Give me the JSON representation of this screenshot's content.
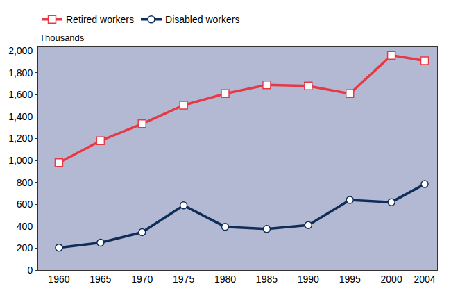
{
  "chart_data": {
    "type": "line",
    "ylabel": "Thousands",
    "x": [
      1960,
      1965,
      1970,
      1975,
      1980,
      1985,
      1990,
      1995,
      2000,
      2004
    ],
    "series": [
      {
        "name": "Retired workers",
        "color": "#e63946",
        "marker": "square",
        "values": [
          980,
          1180,
          1335,
          1505,
          1610,
          1690,
          1680,
          1610,
          1960,
          1910
        ]
      },
      {
        "name": "Disabled workers",
        "color": "#0f2d59",
        "marker": "circle",
        "values": [
          205,
          250,
          345,
          590,
          395,
          375,
          410,
          640,
          620,
          785
        ]
      }
    ],
    "xlim": [
      1957.5,
      2005.5
    ],
    "xticks": [
      1960,
      1965,
      1970,
      1975,
      1980,
      1985,
      1990,
      1995,
      2000,
      2004
    ],
    "ylim": [
      0,
      2040
    ],
    "yticks": [
      0,
      200,
      400,
      600,
      800,
      {
        "value": 1000,
        "label": "1,000"
      },
      {
        "value": 1200,
        "label": "1,200"
      },
      {
        "value": 1400,
        "label": "1,400"
      },
      {
        "value": 1600,
        "label": "1,600"
      },
      {
        "value": 1800,
        "label": "1,800"
      },
      {
        "value": 2000,
        "label": "2,000"
      }
    ],
    "grid": false,
    "legend": "top left"
  }
}
